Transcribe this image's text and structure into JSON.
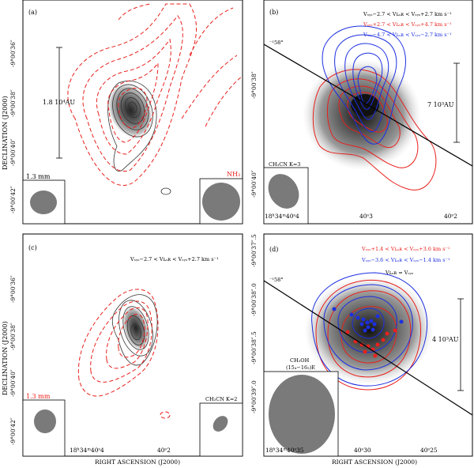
{
  "panels": {
    "a": {
      "label": "(a)",
      "scale_bar": "1.8 10⁴AU",
      "beam_left": "1.3 mm",
      "beam_right": "NH₃",
      "yticks": [
        "-9°00′36″",
        "-9°00′38″",
        "-9°00′40″",
        "-9°00′42″"
      ]
    },
    "b": {
      "label": "(b)",
      "legend": [
        "Vₛᵧₛ−2.7 < Vʟₛʀ < Vₛᵧₛ+2.7 km s⁻¹",
        "Vₛᵧₛ+2.7 < Vʟₛʀ < Vₛᵧₛ+4.7 km s⁻¹",
        "Vₛᵧₛ−4.7 < Vʟₛʀ < Vₛᵧₛ−2.7 km s⁻¹"
      ],
      "pa": "⁻¹58°",
      "scale_bar": "7 10³AU",
      "beam": "CH₃CN K=3",
      "yticks": [
        "-9°00′38″",
        "-9°00′40″"
      ],
      "xticks": [
        "18ʰ34ᵐ40ˢ4",
        "40ˢ3",
        "40ˢ2"
      ]
    },
    "c": {
      "label": "(c)",
      "legend": "Vₛᵧₛ−2.7 < Vʟₛʀ < Vₛᵧₛ+2.7 km s⁻¹",
      "beam_left": "1.3 mm",
      "beam_right": "CH₃CN K=2",
      "yticks": [
        "-9°00′36″",
        "-9°00′38″",
        "-9°00′40″",
        "-9°00′42″"
      ],
      "xticks": [
        "18ʰ34ᵐ40ˢ4",
        "40ˢ2"
      ]
    },
    "d": {
      "label": "(d)",
      "legend": [
        "Vₛᵧₛ+1.4 < Vʟₛʀ < Vₛᵧₛ+3.6 km s⁻¹",
        "Vₛᵧₛ−3.6 < Vʟₛʀ < Vₛᵧₛ−1.4 km s⁻¹",
        "Vʟₛʀ = Vₛᵧₛ"
      ],
      "pa": "⁻¹58°",
      "scale_bar": "4 10³AU",
      "beam": [
        "CH₃OH",
        "(15₄−16₃)E"
      ],
      "yticks": [
        "-9°00′37″.5",
        "-9°00′38″.0",
        "-9°00′38″.5",
        "-9°00′39″.0"
      ],
      "xticks": [
        "18ʰ34ᵐ40ˢ35",
        "40ˢ30",
        "40ˢ25"
      ]
    }
  },
  "axes": {
    "ylabel": "DECLINATION (J2000)",
    "xlabel": "RIGHT ASCENSION (J2000)"
  },
  "colors": {
    "red": "#e8201c",
    "blue": "#1c2fe0",
    "grey": "#7a7a7a"
  }
}
